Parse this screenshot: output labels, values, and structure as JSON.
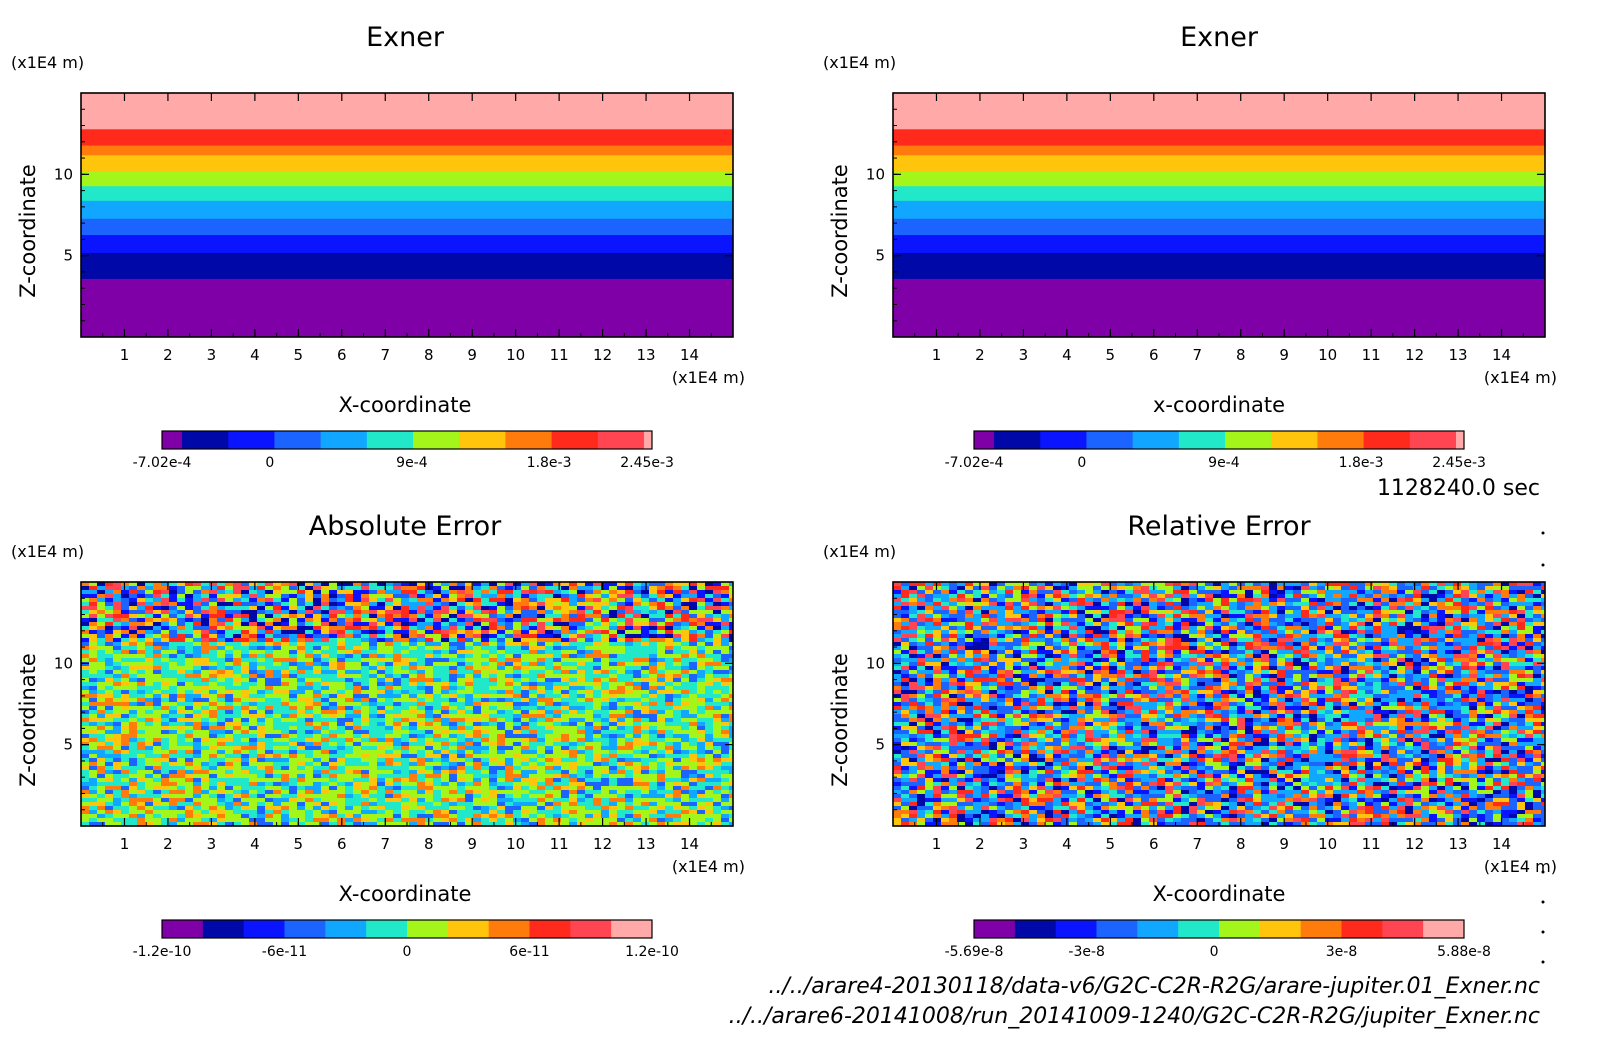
{
  "colors": {
    "purple": "#7f00a6",
    "navy": "#0008a8",
    "blue": "#0a14ff",
    "mid_blue": "#1b64ff",
    "sky": "#11a6ff",
    "cyan": "#21e8c8",
    "lime": "#a4f51a",
    "yellow": "#ffc50c",
    "orange": "#ff7c0c",
    "red": "#ff2a1c",
    "pink_red": "#ff4552",
    "pink": "#ffaaa8"
  },
  "chart_data": [
    {
      "type": "heatmap",
      "title": "Exner",
      "xlabel": "X-coordinate",
      "ylabel": "Z-coordinate",
      "x_unit": "(x1E4 m)",
      "y_unit": "(x1E4 m)",
      "xlim": [
        0,
        15
      ],
      "ylim": [
        0,
        15
      ],
      "x_ticks": [
        "1",
        "2",
        "3",
        "4",
        "5",
        "6",
        "7",
        "8",
        "9",
        "10",
        "11",
        "12",
        "13",
        "14"
      ],
      "y_ticks": [
        "5",
        "10"
      ],
      "field": "horizontal_bands",
      "bands": [
        {
          "z0": 0.0,
          "z1": 3.6,
          "color": "purple"
        },
        {
          "z0": 3.6,
          "z1": 5.2,
          "color": "navy"
        },
        {
          "z0": 5.2,
          "z1": 6.3,
          "color": "blue"
        },
        {
          "z0": 6.3,
          "z1": 7.3,
          "color": "mid_blue"
        },
        {
          "z0": 7.3,
          "z1": 8.4,
          "color": "sky"
        },
        {
          "z0": 8.4,
          "z1": 9.3,
          "color": "cyan"
        },
        {
          "z0": 9.3,
          "z1": 10.2,
          "color": "lime"
        },
        {
          "z0": 10.2,
          "z1": 11.2,
          "color": "yellow"
        },
        {
          "z0": 11.2,
          "z1": 11.8,
          "color": "orange"
        },
        {
          "z0": 11.8,
          "z1": 12.8,
          "color": "red"
        },
        {
          "z0": 12.8,
          "z1": 15.0,
          "color": "pink"
        }
      ],
      "colorbar": {
        "colors": [
          "purple",
          "navy",
          "blue",
          "mid_blue",
          "sky",
          "cyan",
          "lime",
          "yellow",
          "orange",
          "red",
          "pink_red",
          "pink"
        ],
        "widths": [
          1,
          2.3,
          2.3,
          2.3,
          2.3,
          2.3,
          2.3,
          2.3,
          2.3,
          2.3,
          2.3,
          0.4
        ],
        "labels": [
          "-7.02e-4",
          "0",
          "9e-4",
          "1.8e-3",
          "2.45e-3"
        ],
        "label_positions": [
          0.0,
          0.22,
          0.51,
          0.79,
          0.99
        ]
      }
    },
    {
      "type": "heatmap",
      "title": "Exner",
      "xlabel": "x-coordinate",
      "ylabel": "Z-coordinate",
      "x_unit": "(x1E4 m)",
      "y_unit": "(x1E4 m)",
      "xlim": [
        0,
        15
      ],
      "ylim": [
        0,
        15
      ],
      "x_ticks": [
        "1",
        "2",
        "3",
        "4",
        "5",
        "6",
        "7",
        "8",
        "9",
        "10",
        "11",
        "12",
        "13",
        "14"
      ],
      "y_ticks": [
        "5",
        "10"
      ],
      "field": "horizontal_bands",
      "bands": [
        {
          "z0": 0.0,
          "z1": 3.6,
          "color": "purple"
        },
        {
          "z0": 3.6,
          "z1": 5.2,
          "color": "navy"
        },
        {
          "z0": 5.2,
          "z1": 6.3,
          "color": "blue"
        },
        {
          "z0": 6.3,
          "z1": 7.3,
          "color": "mid_blue"
        },
        {
          "z0": 7.3,
          "z1": 8.4,
          "color": "sky"
        },
        {
          "z0": 8.4,
          "z1": 9.3,
          "color": "cyan"
        },
        {
          "z0": 9.3,
          "z1": 10.2,
          "color": "lime"
        },
        {
          "z0": 10.2,
          "z1": 11.2,
          "color": "yellow"
        },
        {
          "z0": 11.2,
          "z1": 11.8,
          "color": "orange"
        },
        {
          "z0": 11.8,
          "z1": 12.8,
          "color": "red"
        },
        {
          "z0": 12.8,
          "z1": 15.0,
          "color": "pink"
        }
      ],
      "colorbar": {
        "colors": [
          "purple",
          "navy",
          "blue",
          "mid_blue",
          "sky",
          "cyan",
          "lime",
          "yellow",
          "orange",
          "red",
          "pink_red",
          "pink"
        ],
        "widths": [
          1,
          2.3,
          2.3,
          2.3,
          2.3,
          2.3,
          2.3,
          2.3,
          2.3,
          2.3,
          2.3,
          0.4
        ],
        "labels": [
          "-7.02e-4",
          "0",
          "9e-4",
          "1.8e-3",
          "2.45e-3"
        ],
        "label_positions": [
          0.0,
          0.22,
          0.51,
          0.79,
          0.99
        ]
      }
    },
    {
      "type": "heatmap",
      "title": "Absolute Error",
      "xlabel": "X-coordinate",
      "ylabel": "Z-coordinate",
      "x_unit": "(x1E4 m)",
      "y_unit": "(x1E4 m)",
      "xlim": [
        0,
        15
      ],
      "ylim": [
        0,
        15
      ],
      "x_ticks": [
        "1",
        "2",
        "3",
        "4",
        "5",
        "6",
        "7",
        "8",
        "9",
        "10",
        "11",
        "12",
        "13",
        "14"
      ],
      "y_ticks": [
        "5",
        "10"
      ],
      "field": "noise",
      "noise": {
        "upper_from_z": 11.5,
        "upper_palette": [
          "navy",
          "blue",
          "mid_blue",
          "sky",
          "cyan",
          "lime",
          "yellow",
          "orange",
          "red",
          "pink_red"
        ],
        "lower_palette": [
          "cyan",
          "cyan",
          "lime",
          "lime",
          "yellow",
          "sky",
          "cyan",
          "lime",
          "mid_blue",
          "orange"
        ]
      },
      "colorbar": {
        "colors": [
          "purple",
          "navy",
          "blue",
          "mid_blue",
          "sky",
          "cyan",
          "lime",
          "yellow",
          "orange",
          "red",
          "pink_red",
          "pink"
        ],
        "widths": [
          1,
          1,
          1,
          1,
          1,
          1,
          1,
          1,
          1,
          1,
          1,
          1
        ],
        "labels": [
          "-1.2e-10",
          "-6e-11",
          "0",
          "6e-11",
          "1.2e-10"
        ],
        "label_positions": [
          0.0,
          0.25,
          0.5,
          0.75,
          1.0
        ]
      }
    },
    {
      "type": "heatmap",
      "title": "Relative Error",
      "xlabel": "X-coordinate",
      "ylabel": "Z-coordinate",
      "x_unit": "(x1E4 m)",
      "y_unit": "(x1E4 m)",
      "xlim": [
        0,
        15
      ],
      "ylim": [
        0,
        15
      ],
      "x_ticks": [
        "1",
        "2",
        "3",
        "4",
        "5",
        "6",
        "7",
        "8",
        "9",
        "10",
        "11",
        "12",
        "13",
        "14"
      ],
      "y_ticks": [
        "5",
        "10"
      ],
      "field": "noise",
      "noise": {
        "upper_from_z": 0,
        "upper_palette": [
          "navy",
          "blue",
          "mid_blue",
          "sky",
          "cyan",
          "lime",
          "yellow",
          "orange",
          "red",
          "pink_red",
          "sky",
          "mid_blue"
        ],
        "lower_palette": []
      },
      "colorbar": {
        "colors": [
          "purple",
          "navy",
          "blue",
          "mid_blue",
          "sky",
          "cyan",
          "lime",
          "yellow",
          "orange",
          "red",
          "pink_red",
          "pink"
        ],
        "widths": [
          1,
          1,
          1,
          1,
          1,
          1,
          1,
          1,
          1,
          1,
          1,
          1
        ],
        "labels": [
          "-5.69e-8",
          "-3e-8",
          "0",
          "3e-8",
          "5.88e-8"
        ],
        "label_positions": [
          0.0,
          0.23,
          0.49,
          0.75,
          1.0
        ]
      }
    }
  ],
  "time_label": "1128240.0 sec",
  "file_paths": [
    "../../arare4-20130118/data-v6/G2C-C2R-R2G/arare-jupiter.01_Exner.nc",
    "../../arare6-20141008/run_20141009-1240/G2C-C2R-R2G/jupiter_Exner.nc"
  ]
}
